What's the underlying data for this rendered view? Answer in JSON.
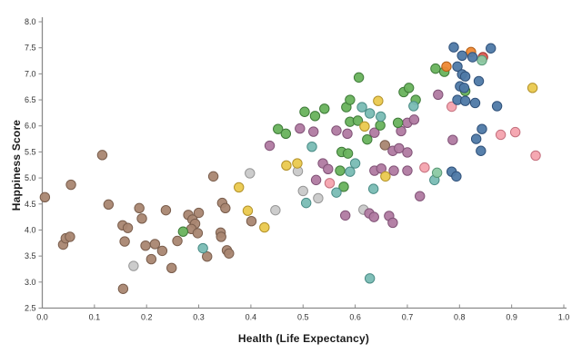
{
  "chart_data": {
    "type": "scatter",
    "title": "",
    "xlabel": "Health (Life Expectancy)",
    "ylabel": "Happiness Score",
    "xlim": [
      0.0,
      1.0
    ],
    "ylim": [
      2.5,
      8.0
    ],
    "xticks": [
      0.0,
      0.1,
      0.2,
      0.3,
      0.4,
      0.5,
      0.6,
      0.7,
      0.8,
      0.9,
      1.0
    ],
    "yticks": [
      2.5,
      3.0,
      3.5,
      4.0,
      4.5,
      5.0,
      5.5,
      6.0,
      6.5,
      7.0,
      7.5,
      8.0
    ],
    "grid": false,
    "legend": "none",
    "axis_color": "#8a8a8a",
    "tick_label_color": "#333333",
    "marker_radius": 5.2,
    "series": [
      {
        "name": "brown",
        "fill": "#a98671",
        "stroke": "#7a5e4d",
        "points": [
          [
            0.005,
            4.63
          ],
          [
            0.055,
            4.87
          ],
          [
            0.04,
            3.72
          ],
          [
            0.045,
            3.84
          ],
          [
            0.053,
            3.87
          ],
          [
            0.115,
            5.44
          ],
          [
            0.127,
            4.49
          ],
          [
            0.154,
            4.09
          ],
          [
            0.164,
            4.04
          ],
          [
            0.158,
            3.78
          ],
          [
            0.186,
            4.42
          ],
          [
            0.191,
            4.22
          ],
          [
            0.198,
            3.7
          ],
          [
            0.216,
            3.73
          ],
          [
            0.23,
            3.6
          ],
          [
            0.209,
            3.44
          ],
          [
            0.248,
            3.27
          ],
          [
            0.155,
            2.87
          ],
          [
            0.237,
            4.38
          ],
          [
            0.259,
            3.79
          ],
          [
            0.28,
            4.29
          ],
          [
            0.288,
            4.2
          ],
          [
            0.293,
            4.12
          ],
          [
            0.286,
            4.02
          ],
          [
            0.298,
            3.94
          ],
          [
            0.3,
            4.33
          ],
          [
            0.316,
            3.49
          ],
          [
            0.354,
            3.61
          ],
          [
            0.358,
            3.55
          ],
          [
            0.328,
            5.03
          ],
          [
            0.345,
            4.52
          ],
          [
            0.351,
            4.42
          ],
          [
            0.342,
            3.95
          ],
          [
            0.343,
            3.87
          ],
          [
            0.401,
            4.17
          ],
          [
            0.657,
            5.63
          ]
        ]
      },
      {
        "name": "gray",
        "fill": "#c9c9c9",
        "stroke": "#979797",
        "points": [
          [
            0.175,
            3.31
          ],
          [
            0.398,
            5.09
          ],
          [
            0.447,
            4.38
          ],
          [
            0.49,
            5.13
          ],
          [
            0.5,
            4.75
          ],
          [
            0.529,
            4.61
          ],
          [
            0.616,
            4.39
          ]
        ]
      },
      {
        "name": "purple",
        "fill": "#b07aa1",
        "stroke": "#815377",
        "points": [
          [
            0.436,
            5.62
          ],
          [
            0.494,
            5.95
          ],
          [
            0.52,
            5.89
          ],
          [
            0.564,
            5.91
          ],
          [
            0.585,
            5.85
          ],
          [
            0.637,
            5.87
          ],
          [
            0.7,
            6.06
          ],
          [
            0.713,
            6.12
          ],
          [
            0.759,
            6.6
          ],
          [
            0.672,
            5.52
          ],
          [
            0.684,
            5.57
          ],
          [
            0.7,
            5.49
          ],
          [
            0.688,
            5.9
          ],
          [
            0.538,
            5.28
          ],
          [
            0.548,
            5.17
          ],
          [
            0.525,
            4.96
          ],
          [
            0.637,
            5.14
          ],
          [
            0.65,
            5.18
          ],
          [
            0.674,
            5.14
          ],
          [
            0.7,
            5.14
          ],
          [
            0.787,
            5.73
          ],
          [
            0.724,
            4.65
          ],
          [
            0.581,
            4.28
          ],
          [
            0.627,
            4.32
          ],
          [
            0.636,
            4.25
          ],
          [
            0.665,
            4.27
          ],
          [
            0.672,
            4.14
          ]
        ]
      },
      {
        "name": "green",
        "fill": "#68b25c",
        "stroke": "#3e7a38",
        "points": [
          [
            0.27,
            3.97
          ],
          [
            0.452,
            5.94
          ],
          [
            0.467,
            5.85
          ],
          [
            0.503,
            6.27
          ],
          [
            0.523,
            6.19
          ],
          [
            0.541,
            6.33
          ],
          [
            0.571,
            5.14
          ],
          [
            0.574,
            5.5
          ],
          [
            0.586,
            5.47
          ],
          [
            0.578,
            4.83
          ],
          [
            0.583,
            6.36
          ],
          [
            0.59,
            6.5
          ],
          [
            0.607,
            6.93
          ],
          [
            0.59,
            6.08
          ],
          [
            0.605,
            6.1
          ],
          [
            0.623,
            5.74
          ],
          [
            0.648,
            6.01
          ],
          [
            0.682,
            6.06
          ],
          [
            0.693,
            6.65
          ],
          [
            0.703,
            6.73
          ],
          [
            0.716,
            6.5
          ],
          [
            0.754,
            7.1
          ],
          [
            0.771,
            7.04
          ],
          [
            0.811,
            6.67
          ]
        ]
      },
      {
        "name": "teal",
        "fill": "#79bcb4",
        "stroke": "#4a8c86",
        "points": [
          [
            0.308,
            3.65
          ],
          [
            0.506,
            4.52
          ],
          [
            0.517,
            5.6
          ],
          [
            0.564,
            4.72
          ],
          [
            0.59,
            5.12
          ],
          [
            0.6,
            5.28
          ],
          [
            0.613,
            6.36
          ],
          [
            0.628,
            6.24
          ],
          [
            0.649,
            6.18
          ],
          [
            0.635,
            4.79
          ],
          [
            0.712,
            6.38
          ],
          [
            0.752,
            4.96
          ],
          [
            0.628,
            3.07
          ]
        ]
      },
      {
        "name": "yellow",
        "fill": "#eac94e",
        "stroke": "#b3922a",
        "points": [
          [
            0.377,
            4.82
          ],
          [
            0.394,
            4.37
          ],
          [
            0.426,
            4.05
          ],
          [
            0.468,
            5.24
          ],
          [
            0.489,
            5.28
          ],
          [
            0.618,
            5.99
          ],
          [
            0.644,
            6.48
          ],
          [
            0.658,
            5.03
          ],
          [
            0.94,
            6.73
          ]
        ]
      },
      {
        "name": "pink",
        "fill": "#f4a3ae",
        "stroke": "#c4707e",
        "points": [
          [
            0.551,
            4.9
          ],
          [
            0.733,
            5.2
          ],
          [
            0.785,
            6.37
          ],
          [
            0.879,
            5.83
          ],
          [
            0.907,
            5.88
          ],
          [
            0.946,
            5.43
          ]
        ]
      },
      {
        "name": "orange",
        "fill": "#ee8833",
        "stroke": "#b35f17",
        "points": [
          [
            0.775,
            7.14
          ],
          [
            0.822,
            7.42
          ]
        ]
      },
      {
        "name": "red",
        "fill": "#da5850",
        "stroke": "#a33730",
        "points": [
          [
            0.845,
            7.32
          ]
        ]
      },
      {
        "name": "mint",
        "fill": "#8bc9a3",
        "stroke": "#5a9877",
        "points": [
          [
            0.843,
            7.26
          ],
          [
            0.757,
            5.1
          ]
        ]
      },
      {
        "name": "blue",
        "fill": "#4e79a7",
        "stroke": "#30517a",
        "points": [
          [
            0.789,
            7.51
          ],
          [
            0.805,
            7.35
          ],
          [
            0.825,
            7.32
          ],
          [
            0.86,
            7.49
          ],
          [
            0.796,
            7.14
          ],
          [
            0.805,
            6.99
          ],
          [
            0.811,
            6.95
          ],
          [
            0.837,
            6.86
          ],
          [
            0.801,
            6.76
          ],
          [
            0.809,
            6.73
          ],
          [
            0.796,
            6.5
          ],
          [
            0.811,
            6.48
          ],
          [
            0.83,
            6.44
          ],
          [
            0.872,
            6.38
          ],
          [
            0.843,
            5.94
          ],
          [
            0.832,
            5.75
          ],
          [
            0.841,
            5.52
          ],
          [
            0.785,
            5.12
          ],
          [
            0.794,
            5.03
          ]
        ]
      }
    ]
  }
}
